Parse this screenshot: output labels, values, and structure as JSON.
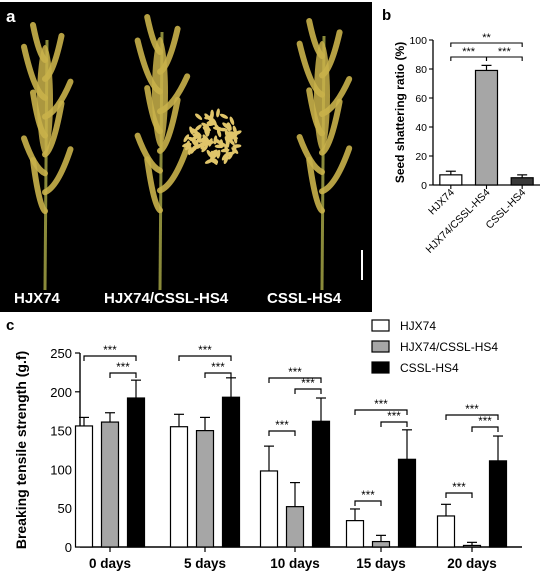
{
  "panel_a": {
    "letter": "a",
    "labels": [
      "HJX74",
      "HJX74/CSSL-HS4",
      "CSSL-HS4"
    ],
    "background": "#000000",
    "panicle_color": "#c9b14a"
  },
  "chart_data": [
    {
      "panel": "b",
      "type": "bar",
      "categories": [
        "HJX74",
        "HJX74/CSSL-HS4",
        "CSSL-HS4"
      ],
      "values": [
        7,
        79,
        5
      ],
      "errors": [
        2.5,
        3.5,
        2
      ],
      "colors": [
        "#ffffff",
        "#a6a6a6",
        "#3a3a3a"
      ],
      "ylabel": "Seed shattering ratio (%)",
      "ylim": [
        0,
        100
      ],
      "yticks": [
        0,
        20,
        40,
        60,
        80,
        100
      ],
      "significance": [
        {
          "from": 0,
          "to": 2,
          "label": "**"
        },
        {
          "from": 0,
          "to": 1,
          "label": "***"
        },
        {
          "from": 1,
          "to": 2,
          "label": "***"
        }
      ]
    },
    {
      "panel": "c",
      "type": "bar",
      "categories": [
        "0 days",
        "5 days",
        "10 days",
        "15 days",
        "20 days"
      ],
      "series": [
        {
          "name": "HJX74",
          "color": "#ffffff",
          "values": [
            156,
            155,
            98,
            34,
            40
          ],
          "errors": [
            11,
            16,
            32,
            15,
            15
          ]
        },
        {
          "name": "HJX74/CSSL-HS4",
          "color": "#a6a6a6",
          "values": [
            161,
            150,
            52,
            7,
            2
          ],
          "errors": [
            12,
            17,
            31,
            8,
            4
          ]
        },
        {
          "name": "CSSL-HS4",
          "color": "#000000",
          "values": [
            192,
            193,
            162,
            113,
            111
          ],
          "errors": [
            23,
            25,
            30,
            38,
            32
          ]
        }
      ],
      "ylabel": "Breaking tensile strength (g.f)",
      "ylim": [
        0,
        250
      ],
      "yticks": [
        0,
        50,
        100,
        150,
        200,
        250
      ],
      "significance": [
        {
          "group": 0,
          "from": 0,
          "to": 2,
          "label": "***"
        },
        {
          "group": 0,
          "from": 1,
          "to": 2,
          "label": "***"
        },
        {
          "group": 1,
          "from": 0,
          "to": 2,
          "label": "***"
        },
        {
          "group": 1,
          "from": 1,
          "to": 2,
          "label": "***"
        },
        {
          "group": 2,
          "from": 0,
          "to": 2,
          "label": "***"
        },
        {
          "group": 2,
          "from": 1,
          "to": 2,
          "label": "***"
        },
        {
          "group": 2,
          "from": 0,
          "to": 1,
          "label": "***"
        },
        {
          "group": 3,
          "from": 0,
          "to": 2,
          "label": "***"
        },
        {
          "group": 3,
          "from": 1,
          "to": 2,
          "label": "***"
        },
        {
          "group": 3,
          "from": 0,
          "to": 1,
          "label": "***"
        },
        {
          "group": 4,
          "from": 0,
          "to": 2,
          "label": "***"
        },
        {
          "group": 4,
          "from": 1,
          "to": 2,
          "label": "***"
        },
        {
          "group": 4,
          "from": 0,
          "to": 1,
          "label": "***"
        }
      ]
    }
  ]
}
